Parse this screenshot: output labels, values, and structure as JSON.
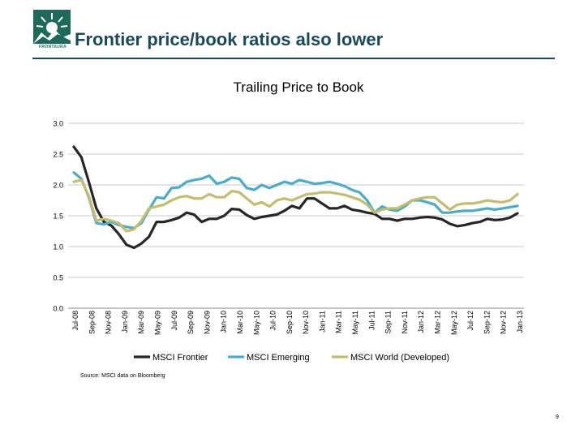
{
  "header": {
    "title": "Frontier price/book ratios also lower",
    "logo_text": "FRONTAURA"
  },
  "source_note": "Source: MSCI data on Bloomberg",
  "page_number": "9",
  "colors": {
    "frontier": "#262626",
    "emerging": "#4bacc6",
    "world": "#c4bd6f",
    "title": "#1a4a5a"
  },
  "chart_data": {
    "type": "line",
    "title": "Trailing Price to Book",
    "xlabel": "",
    "ylabel": "",
    "ylim": [
      0,
      3
    ],
    "yticks": [
      "0.0",
      "0.5",
      "1.0",
      "1.5",
      "2.0",
      "2.5",
      "3.0"
    ],
    "grid": true,
    "legend": "bottom",
    "x_tick_labels": [
      "Jul-08",
      "Sep-08",
      "Nov-08",
      "Jan-09",
      "Mar-09",
      "May-09",
      "Jul-09",
      "Sep-09",
      "Nov-09",
      "Jan-10",
      "Mar-10",
      "May-10",
      "Jul-10",
      "Sep-10",
      "Nov-10",
      "Jan-11",
      "Mar-11",
      "May-11",
      "Jul-11",
      "Sep-11",
      "Nov-11",
      "Jan-12",
      "Mar-12",
      "May-12",
      "Jul-12",
      "Sep-12",
      "Nov-12",
      "Jan-13"
    ],
    "series": [
      {
        "name": "MSCI Frontier",
        "color": "#262626",
        "values": [
          2.62,
          2.45,
          2.05,
          1.62,
          1.4,
          1.34,
          1.2,
          1.03,
          0.98,
          1.05,
          1.16,
          1.4,
          1.4,
          1.43,
          1.47,
          1.55,
          1.52,
          1.4,
          1.45,
          1.45,
          1.5,
          1.61,
          1.6,
          1.51,
          1.45,
          1.48,
          1.5,
          1.52,
          1.58,
          1.66,
          1.62,
          1.78,
          1.78,
          1.7,
          1.62,
          1.62,
          1.66,
          1.6,
          1.58,
          1.55,
          1.53,
          1.45,
          1.45,
          1.42,
          1.45,
          1.45,
          1.47,
          1.48,
          1.47,
          1.44,
          1.37,
          1.33,
          1.35,
          1.38,
          1.4,
          1.45,
          1.43,
          1.44,
          1.47,
          1.54
        ]
      },
      {
        "name": "MSCI Emerging",
        "color": "#4bacc6",
        "values": [
          2.2,
          2.1,
          1.8,
          1.38,
          1.36,
          1.4,
          1.35,
          1.32,
          1.3,
          1.38,
          1.6,
          1.8,
          1.78,
          1.95,
          1.96,
          2.05,
          2.08,
          2.1,
          2.15,
          2.02,
          2.05,
          2.12,
          2.1,
          1.95,
          1.92,
          2.0,
          1.95,
          2.0,
          2.05,
          2.02,
          2.08,
          2.05,
          2.02,
          2.03,
          2.05,
          2.02,
          1.98,
          1.92,
          1.88,
          1.75,
          1.55,
          1.65,
          1.6,
          1.58,
          1.65,
          1.75,
          1.75,
          1.72,
          1.68,
          1.55,
          1.55,
          1.57,
          1.58,
          1.58,
          1.6,
          1.62,
          1.6,
          1.62,
          1.64,
          1.66
        ]
      },
      {
        "name": "MSCI World (Developed)",
        "color": "#c4bd6f",
        "values": [
          2.05,
          2.08,
          1.82,
          1.42,
          1.45,
          1.42,
          1.38,
          1.25,
          1.28,
          1.42,
          1.62,
          1.65,
          1.68,
          1.75,
          1.8,
          1.82,
          1.78,
          1.78,
          1.85,
          1.8,
          1.8,
          1.9,
          1.88,
          1.78,
          1.68,
          1.72,
          1.65,
          1.75,
          1.78,
          1.75,
          1.8,
          1.85,
          1.86,
          1.88,
          1.88,
          1.86,
          1.84,
          1.8,
          1.76,
          1.68,
          1.55,
          1.6,
          1.62,
          1.62,
          1.68,
          1.75,
          1.78,
          1.8,
          1.8,
          1.7,
          1.6,
          1.68,
          1.7,
          1.7,
          1.72,
          1.75,
          1.73,
          1.72,
          1.75,
          1.85
        ]
      }
    ]
  }
}
